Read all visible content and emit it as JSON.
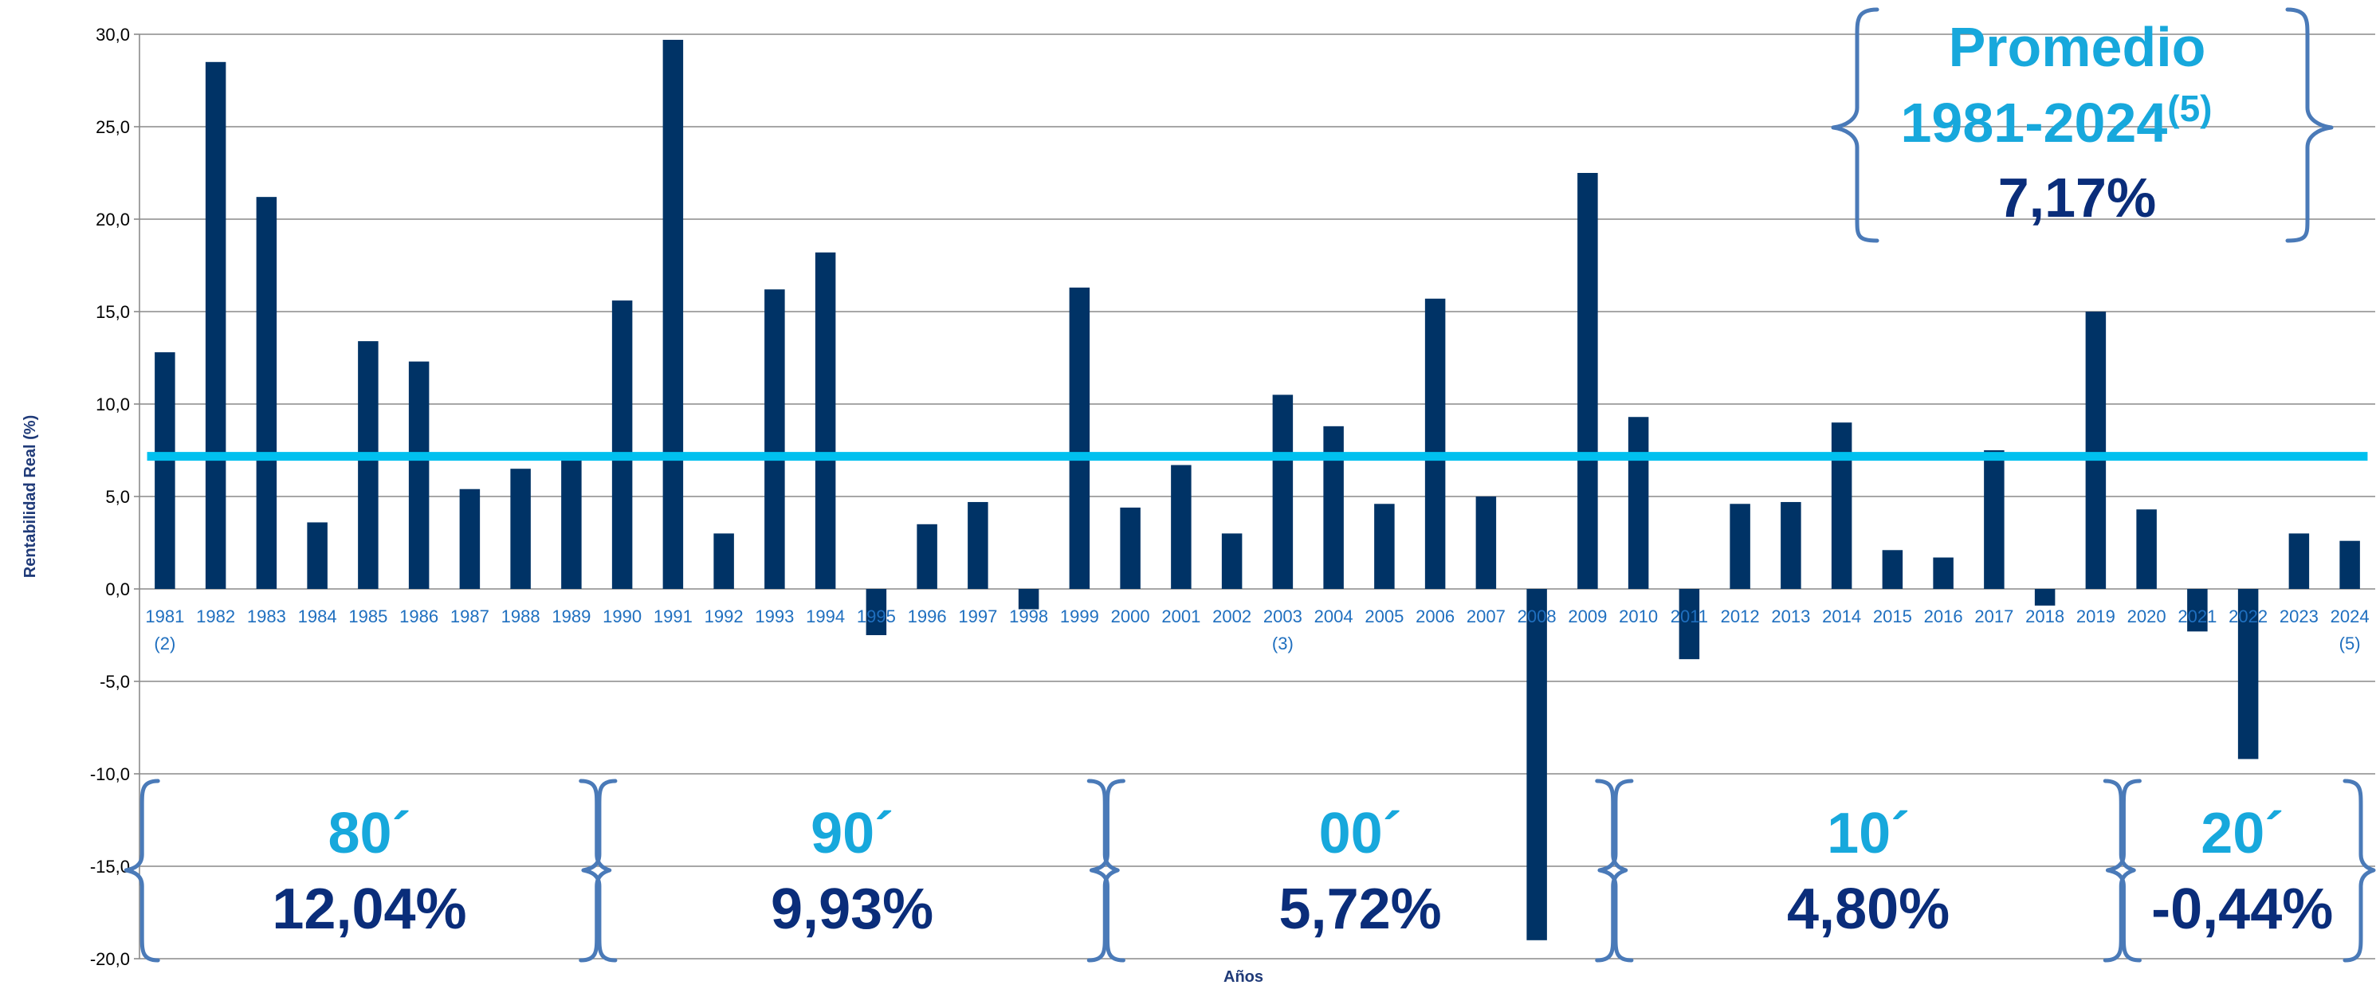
{
  "chart_data": {
    "type": "bar",
    "title": "",
    "xlabel": "Años",
    "ylabel": "Rentabilidad Real (%)",
    "ylim": [
      -20,
      30
    ],
    "yticks": [
      "30,0",
      "25,0",
      "20,0",
      "15,0",
      "10,0",
      "5,0",
      "0,0",
      "-5,0",
      "-10,0",
      "-15,0",
      "-20,0"
    ],
    "ytick_values": [
      30,
      25,
      20,
      15,
      10,
      5,
      0,
      -5,
      -10,
      -15,
      -20
    ],
    "grid": true,
    "categories": [
      "1981",
      "1982",
      "1983",
      "1984",
      "1985",
      "1986",
      "1987",
      "1988",
      "1989",
      "1990",
      "1991",
      "1992",
      "1993",
      "1994",
      "1995",
      "1996",
      "1997",
      "1998",
      "1999",
      "2000",
      "2001",
      "2002",
      "2003",
      "2004",
      "2005",
      "2006",
      "2007",
      "2008",
      "2009",
      "2010",
      "2011",
      "2012",
      "2013",
      "2014",
      "2015",
      "2016",
      "2017",
      "2018",
      "2019",
      "2020",
      "2021",
      "2022",
      "2023",
      "2024"
    ],
    "category_notes": {
      "1981": "(2)",
      "2003": "(3)",
      "2024": "(5)"
    },
    "values": [
      12.8,
      28.5,
      21.2,
      3.6,
      13.4,
      12.3,
      5.4,
      6.5,
      7.0,
      15.6,
      29.7,
      3.0,
      16.2,
      18.2,
      -2.5,
      3.5,
      4.7,
      -1.1,
      16.3,
      4.4,
      6.7,
      3.0,
      10.5,
      8.8,
      4.6,
      15.7,
      5.0,
      -19.0,
      22.5,
      9.3,
      -3.8,
      4.6,
      4.7,
      9.0,
      2.1,
      1.7,
      7.5,
      -0.9,
      15.0,
      4.3,
      -2.3,
      -9.2,
      3.0,
      2.6
    ],
    "colors": {
      "bar": "#003366",
      "average_line": "#00c0ef",
      "grid": "#8a8a8a",
      "brace": "#4a7ab8",
      "label_light": "#17a8dc",
      "label_dark": "#0a2d7a",
      "tick_x": "#1f6fbf"
    },
    "average": {
      "value": 7.17,
      "title_line1": "Promedio",
      "title_line2": "1981-2024",
      "note": "(5)",
      "value_label": "7,17%"
    },
    "decades": [
      {
        "label": "80´",
        "value_label": "12,04%",
        "from": 1981,
        "to": 1989
      },
      {
        "label": "90´",
        "value_label": "9,93%",
        "from": 1990,
        "to": 1999
      },
      {
        "label": "00´",
        "value_label": "5,72%",
        "from": 2000,
        "to": 2009
      },
      {
        "label": "10´",
        "value_label": "4,80%",
        "from": 2010,
        "to": 2019
      },
      {
        "label": "20´",
        "value_label": "-0,44%",
        "from": 2020,
        "to": 2024
      }
    ]
  }
}
